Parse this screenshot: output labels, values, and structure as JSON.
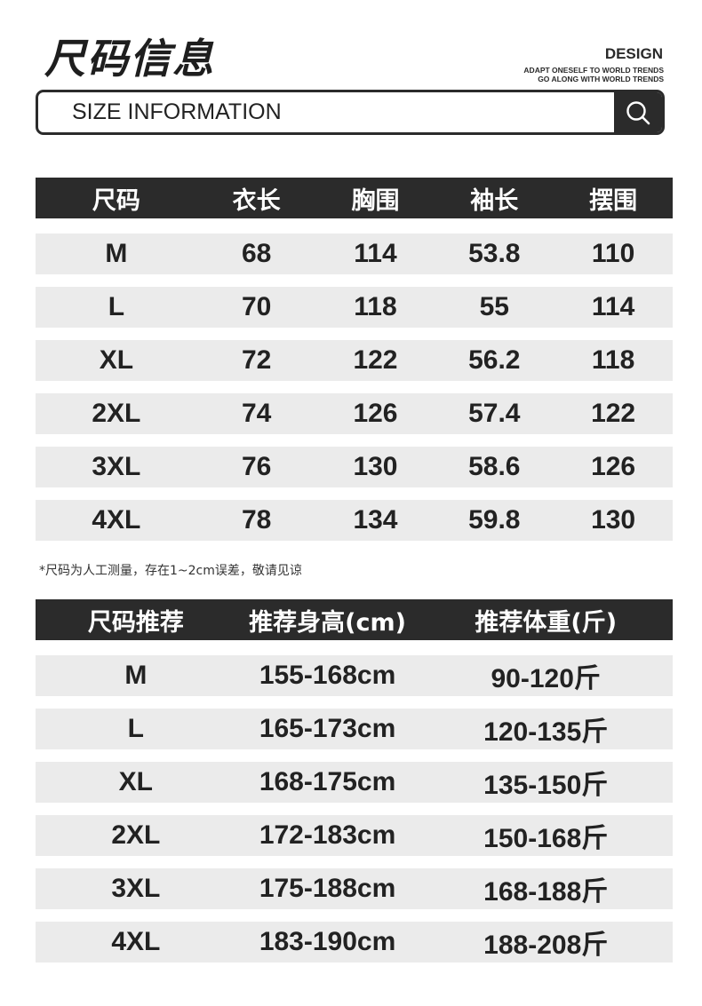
{
  "header": {
    "title": "尺码信息",
    "design": "DESIGN",
    "slogan1": "ADAPT ONESELF TO WORLD TRENDS",
    "slogan2": "GO ALONG WITH WORLD TRENDS",
    "search_label": "SIZE INFORMATION",
    "search_icon": "search-icon"
  },
  "size_table": {
    "headers": [
      "尺码",
      "衣长",
      "胸围",
      "袖长",
      "摆围"
    ],
    "rows": [
      [
        "M",
        "68",
        "114",
        "53.8",
        "110"
      ],
      [
        "L",
        "70",
        "118",
        "55",
        "114"
      ],
      [
        "XL",
        "72",
        "122",
        "56.2",
        "118"
      ],
      [
        "2XL",
        "74",
        "126",
        "57.4",
        "122"
      ],
      [
        "3XL",
        "76",
        "130",
        "58.6",
        "126"
      ],
      [
        "4XL",
        "78",
        "134",
        "59.8",
        "130"
      ]
    ]
  },
  "note": "*尺码为人工测量，存在1~2cm误差，敬请见谅",
  "recommend_table": {
    "headers": [
      "尺码推荐",
      "推荐身高(cm)",
      "推荐体重(斤)"
    ],
    "rows": [
      [
        "M",
        "155-168cm",
        "90-120斤"
      ],
      [
        "L",
        "165-173cm",
        "120-135斤"
      ],
      [
        "XL",
        "168-175cm",
        "135-150斤"
      ],
      [
        "2XL",
        "172-183cm",
        "150-168斤"
      ],
      [
        "3XL",
        "175-188cm",
        "168-188斤"
      ],
      [
        "4XL",
        "183-190cm",
        "188-208斤"
      ]
    ]
  },
  "colors": {
    "dark": "#2b2b2b",
    "row_bg": "#ebebeb"
  }
}
